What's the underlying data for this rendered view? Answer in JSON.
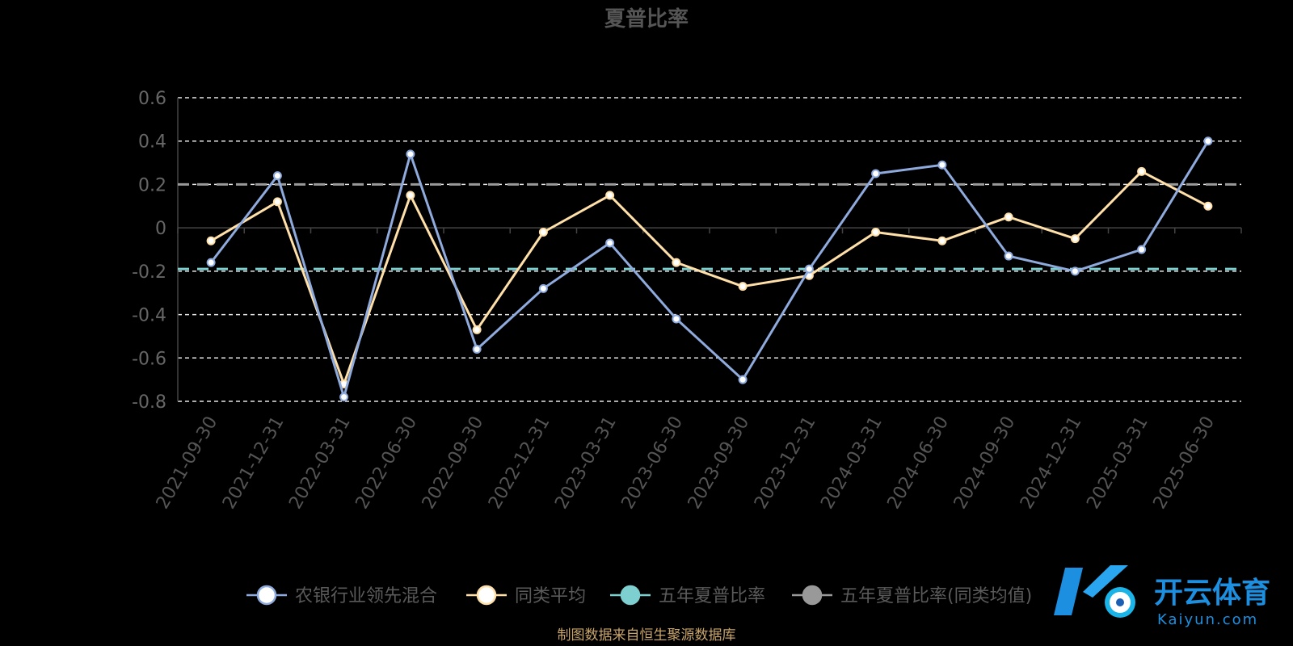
{
  "chart_data": {
    "type": "line",
    "title": "夏普比率",
    "categories": [
      "2021-09-30",
      "2021-12-31",
      "2022-03-31",
      "2022-06-30",
      "2022-09-30",
      "2022-12-31",
      "2023-03-31",
      "2023-06-30",
      "2023-09-30",
      "2023-12-31",
      "2024-03-31",
      "2024-06-30",
      "2024-09-30",
      "2024-12-31",
      "2025-03-31",
      "2025-06-30"
    ],
    "ylim": [
      -0.8,
      0.6
    ],
    "yticks": [
      "0.6",
      "0.4",
      "0.2",
      "0",
      "-0.2",
      "-0.4",
      "-0.6",
      "-0.8"
    ],
    "grid": true,
    "legend_position": "bottom",
    "series": [
      {
        "name": "农银行业领先混合",
        "color": "#8faadc",
        "marker_fill": "#ffffff",
        "values": [
          -0.16,
          0.24,
          -0.78,
          0.34,
          -0.56,
          -0.28,
          -0.07,
          -0.42,
          -0.7,
          -0.19,
          0.25,
          0.29,
          -0.13,
          -0.2,
          -0.1,
          0.4
        ]
      },
      {
        "name": "同类平均",
        "color": "#ffe0a8",
        "marker_fill": "#ffffff",
        "values": [
          -0.06,
          0.12,
          -0.72,
          0.15,
          -0.47,
          -0.02,
          0.15,
          -0.16,
          -0.27,
          -0.22,
          -0.02,
          -0.06,
          0.05,
          -0.05,
          0.26,
          0.1
        ]
      },
      {
        "name": "五年夏普比率",
        "color": "#7ecfd0",
        "marker_fill": "#7ecfd0",
        "dashed": true,
        "values": [
          -0.19,
          -0.19,
          -0.19,
          -0.19,
          -0.19,
          -0.19,
          -0.19,
          -0.19,
          -0.19,
          -0.19,
          -0.19,
          -0.19,
          -0.19,
          -0.19,
          -0.19,
          -0.19
        ]
      },
      {
        "name": "五年夏普比率(同类均值)",
        "color": "#999999",
        "marker_fill": "#999999",
        "dashed": true,
        "values": [
          0.2,
          0.2,
          0.2,
          0.2,
          0.2,
          0.2,
          0.2,
          0.2,
          0.2,
          0.2,
          0.2,
          0.2,
          0.2,
          0.2,
          0.2,
          0.2
        ]
      }
    ]
  },
  "footer": {
    "source": "制图数据来自恒生聚源数据库"
  },
  "brand": {
    "name_cn": "开云体育",
    "name_en": "Kaiyun.com"
  }
}
